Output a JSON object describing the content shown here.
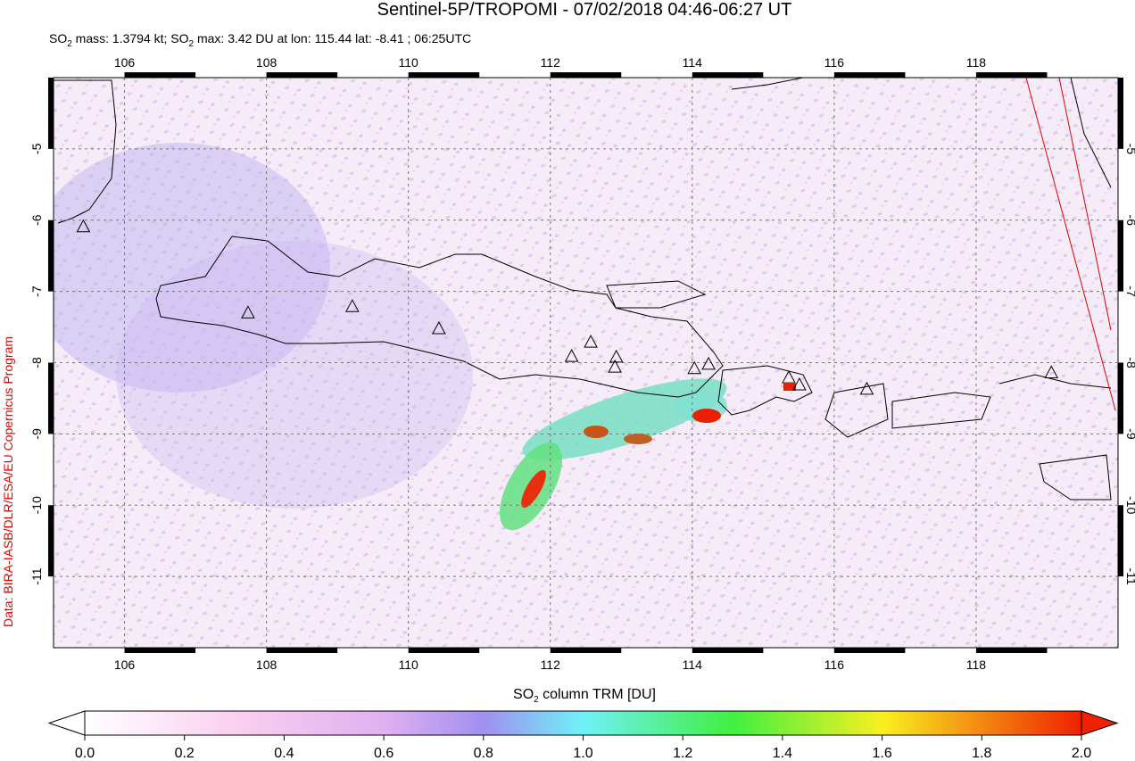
{
  "header": {
    "title": "Sentinel-5P/TROPOMI - 07/02/2018 04:46-06:27 UT",
    "subtitle_parts": [
      "SO",
      "2",
      " mass: 1.3794 kt; SO",
      "2",
      " max: 3.42 DU at lon: 115.44 lat: -8.41 ; 06:25UTC"
    ]
  },
  "map": {
    "xlim": [
      105,
      120
    ],
    "ylim": [
      -12,
      -4
    ],
    "xticks": [
      106,
      108,
      110,
      112,
      114,
      116,
      118
    ],
    "yticks": [
      -5,
      -6,
      -7,
      -8,
      -9,
      -10,
      -11
    ],
    "grid": true,
    "volcanoes": [
      {
        "lon": 105.42,
        "lat": -6.1
      },
      {
        "lon": 107.74,
        "lat": -7.31
      },
      {
        "lon": 109.21,
        "lat": -7.22
      },
      {
        "lon": 110.43,
        "lat": -7.53
      },
      {
        "lon": 112.3,
        "lat": -7.92
      },
      {
        "lon": 112.57,
        "lat": -7.72
      },
      {
        "lon": 112.93,
        "lat": -7.93
      },
      {
        "lon": 112.91,
        "lat": -8.07
      },
      {
        "lon": 114.03,
        "lat": -8.09
      },
      {
        "lon": 114.23,
        "lat": -8.03
      },
      {
        "lon": 115.36,
        "lat": -8.22
      },
      {
        "lon": 115.51,
        "lat": -8.32
      },
      {
        "lon": 116.46,
        "lat": -8.38
      },
      {
        "lon": 119.06,
        "lat": -8.15
      }
    ]
  },
  "colorbar": {
    "label_parts": [
      "SO",
      "2",
      " column TRM [DU]"
    ],
    "lim": [
      0,
      2
    ],
    "ticks": [
      {
        "value": 0,
        "label": "0.0"
      },
      {
        "value": 0.2,
        "label": "0.2"
      },
      {
        "value": 0.4,
        "label": "0.4"
      },
      {
        "value": 0.6,
        "label": "0.6"
      },
      {
        "value": 0.8,
        "label": "0.8"
      },
      {
        "value": 1,
        "label": "1.0"
      },
      {
        "value": 1.2,
        "label": "1.2"
      },
      {
        "value": 1.4,
        "label": "1.4"
      },
      {
        "value": 1.6,
        "label": "1.6"
      },
      {
        "value": 1.8,
        "label": "1.8"
      },
      {
        "value": 2,
        "label": "2.0"
      }
    ]
  },
  "credit": "Data: BIRA-IASB/DLR/ESA/EU Copernicus Program"
}
